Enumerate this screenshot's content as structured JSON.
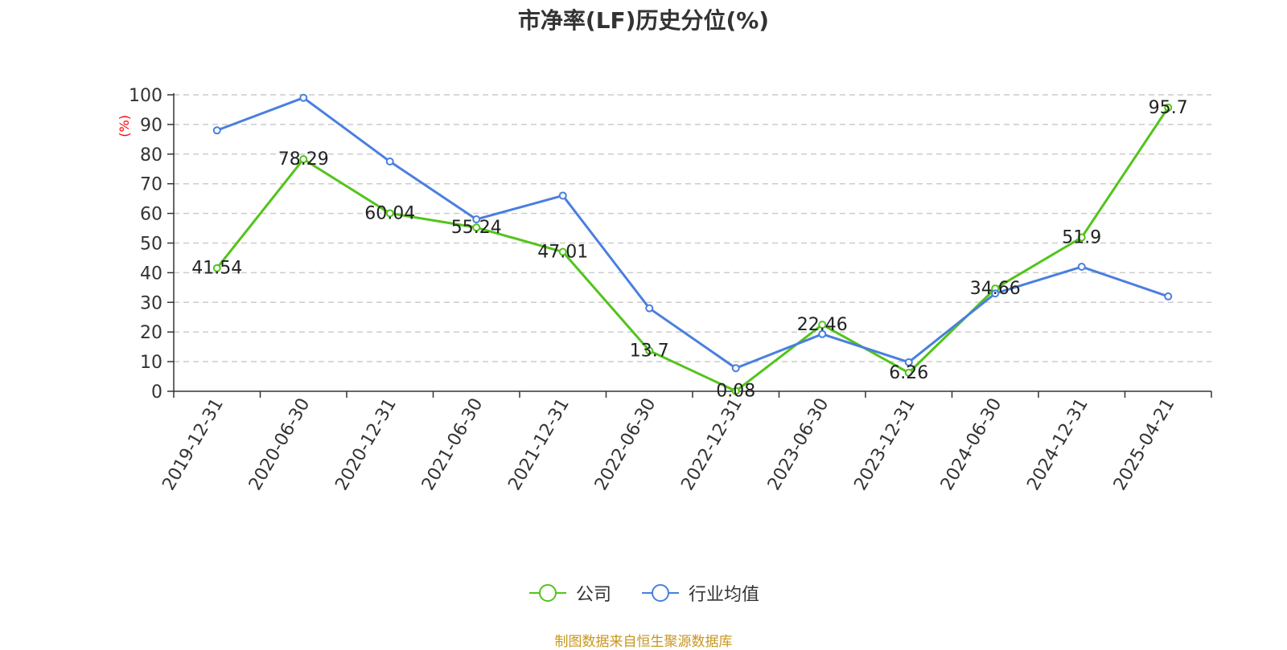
{
  "title": "市净率(LF)历史分位(%)",
  "source_note": "制图数据来自恒生聚源数据库",
  "colors": {
    "company": "#52c41a",
    "industry": "#4a7fde",
    "grid": "#cccccc",
    "axis": "#333333",
    "ylabel": "#ff0000",
    "source": "#c8961e"
  },
  "chart_data": {
    "type": "line",
    "title": "市净率(LF)历史分位(%)",
    "xlabel": "",
    "ylabel": "(%)",
    "ylim": [
      0,
      100
    ],
    "yticks": [
      0,
      10,
      20,
      30,
      40,
      50,
      60,
      70,
      80,
      90,
      100
    ],
    "grid": true,
    "legend_position": "bottom",
    "categories": [
      "2019-12-31",
      "2020-06-30",
      "2020-12-31",
      "2021-06-30",
      "2021-12-31",
      "2022-06-30",
      "2022-12-31",
      "2023-06-30",
      "2023-12-31",
      "2024-06-30",
      "2024-12-31",
      "2025-04-21"
    ],
    "series": [
      {
        "name": "公司",
        "values": [
          41.54,
          78.29,
          60.04,
          55.24,
          47.01,
          13.7,
          0.08,
          22.46,
          6.26,
          34.66,
          51.9,
          95.7
        ],
        "labels": [
          "41.54",
          "78.29",
          "60.04",
          "55.24",
          "47.01",
          "13.7",
          "0.08",
          "22.46",
          "6.26",
          "34.66",
          "51.9",
          "95.7"
        ]
      },
      {
        "name": "行业均值",
        "values": [
          88,
          99,
          77.5,
          58,
          66,
          28,
          7.8,
          19.3,
          9.8,
          33,
          42,
          32
        ]
      }
    ]
  }
}
